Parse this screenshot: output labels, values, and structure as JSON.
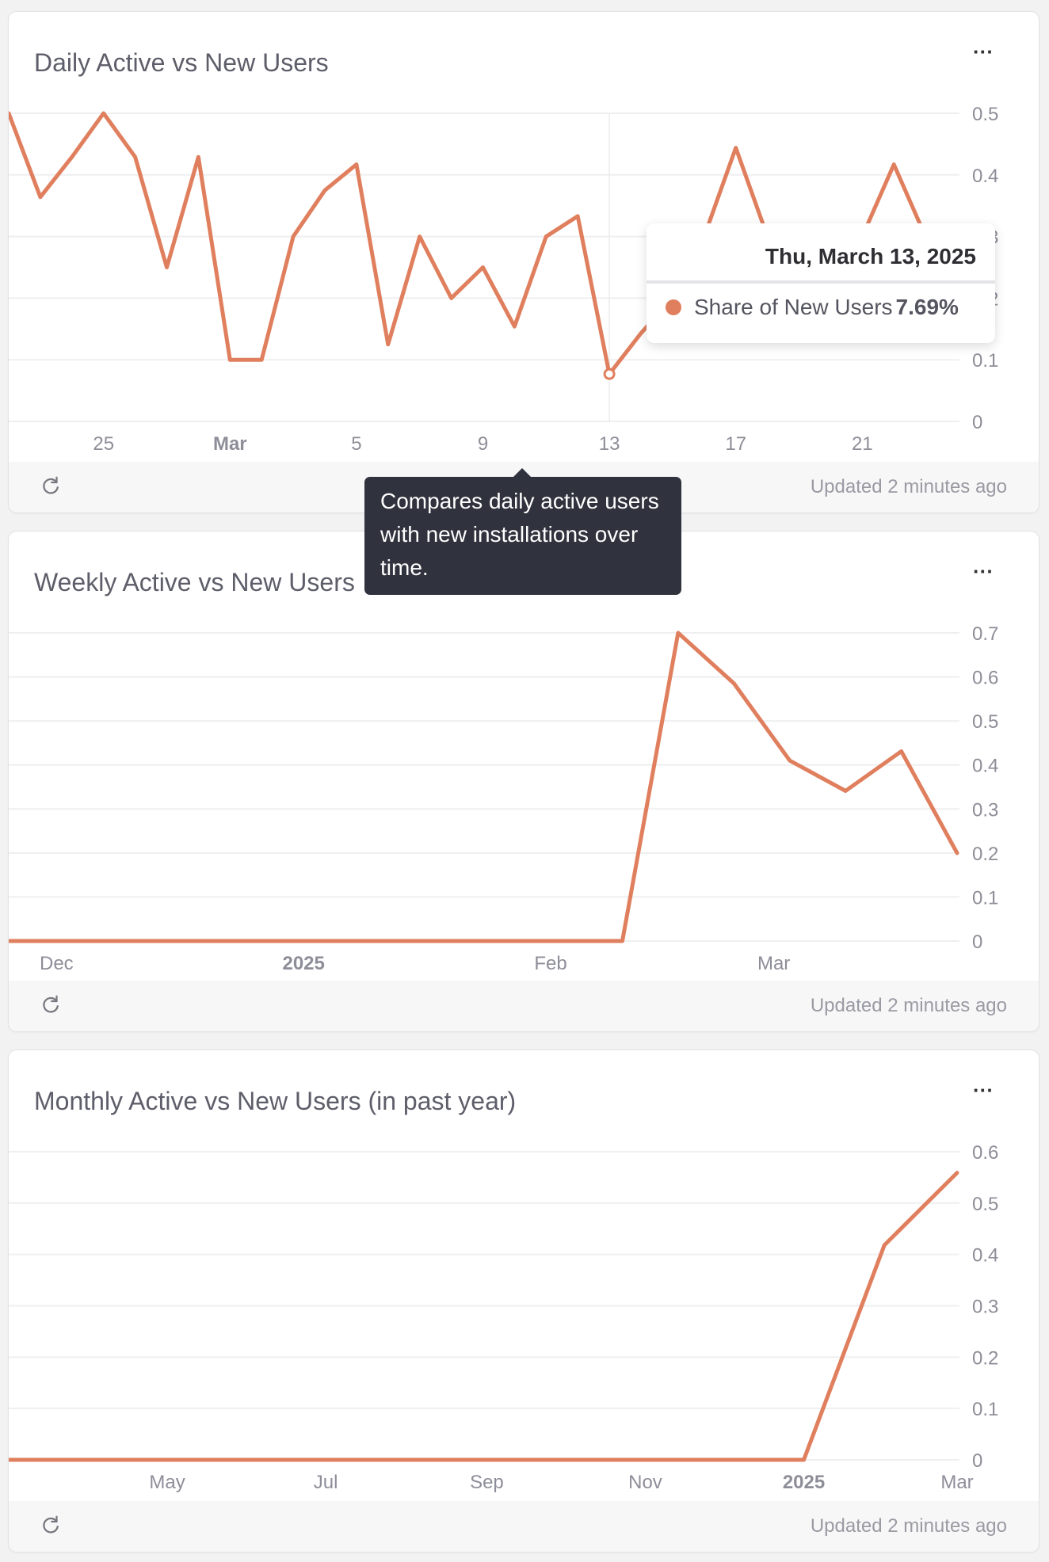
{
  "colors": {
    "series": "#e07f5e",
    "grid": "#efeff1",
    "tick": "#8e8e99",
    "tooltip_bg": "#30333d"
  },
  "cards": [
    {
      "title": "Daily Active vs New Users",
      "menu_icon": "ellipsis-icon",
      "refresh_icon": "refresh-icon",
      "updated": "Updated 2 minutes ago"
    },
    {
      "title": "Weekly Active vs New Users",
      "menu_icon": "ellipsis-icon",
      "refresh_icon": "refresh-icon",
      "updated": "Updated 2 minutes ago"
    },
    {
      "title": "Monthly Active vs New Users (in past year)",
      "menu_icon": "ellipsis-icon",
      "refresh_icon": "refresh-icon",
      "updated": "Updated 2 minutes ago"
    }
  ],
  "hover_tooltip": {
    "date": "Thu, March 13, 2025",
    "series": "Share of New Users",
    "value": "7.69%"
  },
  "description_tooltip": {
    "text": "Compares daily active users with new installations over time."
  },
  "chart_data": [
    {
      "type": "line",
      "series": [
        {
          "name": "Share of New Users",
          "x": [
            "2025-02-22",
            "2025-02-23",
            "2025-02-24",
            "2025-02-25",
            "2025-02-26",
            "2025-02-27",
            "2025-02-28",
            "2025-03-01",
            "2025-03-02",
            "2025-03-03",
            "2025-03-04",
            "2025-03-05",
            "2025-03-06",
            "2025-03-07",
            "2025-03-08",
            "2025-03-09",
            "2025-03-10",
            "2025-03-11",
            "2025-03-12",
            "2025-03-13",
            "2025-03-14",
            "2025-03-15",
            "2025-03-16",
            "2025-03-17",
            "2025-03-18",
            "2025-03-19",
            "2025-03-20",
            "2025-03-21",
            "2025-03-22",
            "2025-03-23",
            "2025-03-24"
          ],
          "values": [
            0.5,
            0.364,
            0.429,
            0.5,
            0.429,
            0.25,
            0.429,
            0.1,
            0.1,
            0.3,
            0.375,
            0.417,
            0.125,
            0.3,
            0.2,
            0.25,
            0.154,
            0.3,
            0.333,
            0.0769,
            0.143,
            0.2,
            0.3,
            0.444,
            0.3,
            0.25,
            0.3,
            0.3,
            0.417,
            0.3,
            0.25
          ]
        }
      ],
      "xlim": [
        "2025-02-22",
        "2025-03-24"
      ],
      "ylim": [
        0,
        0.5
      ],
      "yticks": [
        0,
        0.1,
        0.2,
        0.3,
        0.4,
        0.5
      ],
      "ytick_labels": [
        "0",
        "0.1",
        "0.2",
        "0.3",
        "0.4",
        "0.5"
      ],
      "xticks": [
        {
          "date": "2025-02-25",
          "label": "25"
        },
        {
          "date": "2025-03-01",
          "label": "Mar",
          "bold": true
        },
        {
          "date": "2025-03-05",
          "label": "5"
        },
        {
          "date": "2025-03-09",
          "label": "9"
        },
        {
          "date": "2025-03-13",
          "label": "13"
        },
        {
          "date": "2025-03-17",
          "label": "17"
        },
        {
          "date": "2025-03-21",
          "label": "21"
        }
      ],
      "highlight": "2025-03-13",
      "grid": true
    },
    {
      "type": "line",
      "series": [
        {
          "x": [
            "2024-11-25",
            "2024-12-02",
            "2024-12-09",
            "2024-12-16",
            "2024-12-23",
            "2024-12-30",
            "2025-01-06",
            "2025-01-13",
            "2025-01-20",
            "2025-01-27",
            "2025-02-03",
            "2025-02-10",
            "2025-02-17",
            "2025-02-24",
            "2025-03-03",
            "2025-03-10",
            "2025-03-17",
            "2025-03-24"
          ],
          "values": [
            0,
            0,
            0,
            0,
            0,
            0,
            0,
            0,
            0,
            0,
            0,
            0,
            0.7,
            0.585,
            0.41,
            0.341,
            0.431,
            0.2
          ]
        }
      ],
      "xlim": [
        "2024-11-25",
        "2025-03-24"
      ],
      "ylim": [
        0,
        0.7
      ],
      "yticks": [
        0,
        0.1,
        0.2,
        0.3,
        0.4,
        0.5,
        0.6,
        0.7
      ],
      "ytick_labels": [
        "0",
        "0.1",
        "0.2",
        "0.3",
        "0.4",
        "0.5",
        "0.6",
        "0.7"
      ],
      "xticks": [
        {
          "date": "2024-12-01",
          "label": "Dec"
        },
        {
          "date": "2025-01-01",
          "label": "2025",
          "bold": true
        },
        {
          "date": "2025-02-01",
          "label": "Feb"
        },
        {
          "date": "2025-03-01",
          "label": "Mar"
        }
      ],
      "grid": true
    },
    {
      "type": "line",
      "series": [
        {
          "x": [
            "2024-03-01",
            "2024-04-01",
            "2024-05-01",
            "2024-06-01",
            "2024-07-01",
            "2024-08-01",
            "2024-09-01",
            "2024-10-01",
            "2024-11-01",
            "2024-12-01",
            "2025-01-01",
            "2025-02-01",
            "2025-03-01"
          ],
          "values": [
            0,
            0,
            0,
            0,
            0,
            0,
            0,
            0,
            0,
            0,
            0,
            0.418,
            0.559
          ]
        }
      ],
      "xlim": [
        "2024-03-01",
        "2025-03-01"
      ],
      "ylim": [
        0,
        0.6
      ],
      "yticks": [
        0,
        0.1,
        0.2,
        0.3,
        0.4,
        0.5,
        0.6
      ],
      "ytick_labels": [
        "0",
        "0.1",
        "0.2",
        "0.3",
        "0.4",
        "0.5",
        "0.6"
      ],
      "xticks": [
        {
          "date": "2024-05-01",
          "label": "May"
        },
        {
          "date": "2024-07-01",
          "label": "Jul"
        },
        {
          "date": "2024-09-01",
          "label": "Sep"
        },
        {
          "date": "2024-11-01",
          "label": "Nov"
        },
        {
          "date": "2025-01-01",
          "label": "2025",
          "bold": true
        },
        {
          "date": "2025-03-01",
          "label": "Mar"
        }
      ],
      "grid": true
    }
  ]
}
